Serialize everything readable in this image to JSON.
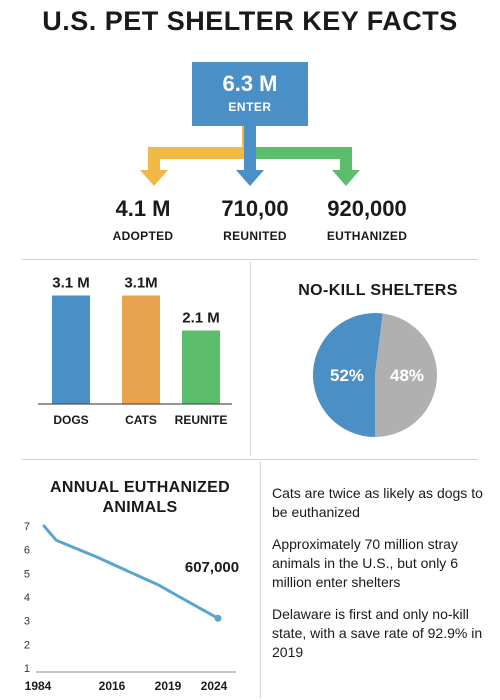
{
  "title": "U.S. PET SHELTER KEY FACTS",
  "colors": {
    "blue": "#4a8fc6",
    "orange": "#e9a24e",
    "green": "#5cbd6d",
    "yellow": "#f0b845",
    "gray": "#b0b0b0",
    "line": "#5aa5cf"
  },
  "flow": {
    "enter_value": "6.3 M",
    "enter_label": "ENTER",
    "outcomes": [
      {
        "value": "4.1 M",
        "label": "ADOPTED"
      },
      {
        "value": "710,00",
        "label": "REUNITED"
      },
      {
        "value": "920,000",
        "label": "EUTHANIZED"
      }
    ]
  },
  "chart_data": [
    {
      "type": "bar",
      "categories": [
        "DOGS",
        "CATS",
        "REUNITE"
      ],
      "values": [
        3.1,
        3.1,
        2.1
      ],
      "data_labels": [
        "3.1 M",
        "3.1M",
        "2.1 M"
      ],
      "colors": [
        "#4a8fc6",
        "#e9a24e",
        "#5cbd6d"
      ]
    },
    {
      "type": "pie",
      "title": "NO-KILL SHELTERS",
      "slices": [
        {
          "value": 52,
          "label": "52%",
          "color": "#4a8fc6"
        },
        {
          "value": 48,
          "label": "48%",
          "color": "#b0b0b0"
        }
      ]
    },
    {
      "type": "line",
      "title": "ANNUAL EUTHANIZED ANIMALS",
      "x_ticks": [
        "1984",
        "2016",
        "2019",
        "2024"
      ],
      "y_ticks": [
        "1",
        "2",
        "3",
        "4",
        "5",
        "6",
        "7"
      ],
      "ylim": [
        1,
        7
      ],
      "points": [
        {
          "x": 0,
          "y": 7.0
        },
        {
          "x": 0.07,
          "y": 6.4
        },
        {
          "x": 0.3,
          "y": 5.7
        },
        {
          "x": 0.66,
          "y": 4.5
        },
        {
          "x": 0.78,
          "y": 4.0
        },
        {
          "x": 1,
          "y": 3.1
        }
      ],
      "end_label": "607,000"
    }
  ],
  "facts": [
    "Cats are twice as likely as dogs to be euthanized",
    "Approximately 70 million stray animals in the U.S., but only 6 million enter shelters",
    "Delaware is first and only no-kill state, with a save rate of 92.9% in 2019"
  ]
}
